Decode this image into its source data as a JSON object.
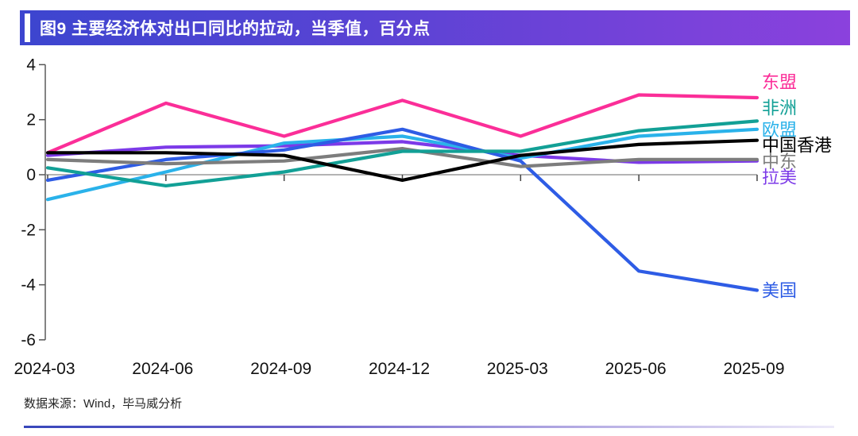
{
  "header": {
    "title": "图9 主要经济体对出口同比的拉动，当季值，百分点"
  },
  "chart_data": {
    "type": "line",
    "title": "图9 主要经济体对出口同比的拉动，当季值，百分点",
    "xlabel": "",
    "ylabel": "百分点",
    "categories": [
      "2024-03",
      "2024-06",
      "2024-09",
      "2024-12",
      "2025-03",
      "2025-06",
      "2025-09"
    ],
    "series": [
      {
        "name": "东盟",
        "color": "#fb2e98",
        "values": [
          0.8,
          2.6,
          1.4,
          2.7,
          1.4,
          2.9,
          2.8
        ],
        "label_dy": -20
      },
      {
        "name": "非洲",
        "color": "#12a096",
        "values": [
          0.25,
          -0.4,
          0.1,
          0.85,
          0.85,
          1.6,
          1.95
        ],
        "label_dy": -17
      },
      {
        "name": "欧盟",
        "color": "#2ab2ea",
        "values": [
          -0.9,
          0.1,
          1.15,
          1.4,
          0.6,
          1.4,
          1.65
        ],
        "label_dy": 0
      },
      {
        "name": "中国香港",
        "color": "#000000",
        "values": [
          0.8,
          0.8,
          0.7,
          -0.2,
          0.7,
          1.1,
          1.25
        ],
        "label_dy": 6
      },
      {
        "name": "中东",
        "color": "#7d7d7d",
        "values": [
          0.55,
          0.4,
          0.5,
          0.95,
          0.3,
          0.55,
          0.55
        ],
        "label_dy": 2
      },
      {
        "name": "拉美",
        "color": "#7c3ae8",
        "values": [
          0.7,
          1.0,
          1.05,
          1.2,
          0.7,
          0.45,
          0.5
        ],
        "label_dy": 20
      },
      {
        "name": "美国",
        "color": "#2e5ce5",
        "values": [
          -0.2,
          0.55,
          0.9,
          1.65,
          0.5,
          -3.5,
          -4.2
        ],
        "label_dy": 0
      }
    ],
    "ylim": [
      -6,
      4
    ],
    "yticks": [
      4,
      2,
      0,
      -2,
      -4,
      -6
    ],
    "grid": "zero-line-only",
    "legend_position": "right-end-labels",
    "draw_order": [
      5,
      2,
      6,
      4,
      1,
      0,
      3
    ]
  },
  "footer": {
    "source": "数据来源：Wind，毕马威分析"
  }
}
